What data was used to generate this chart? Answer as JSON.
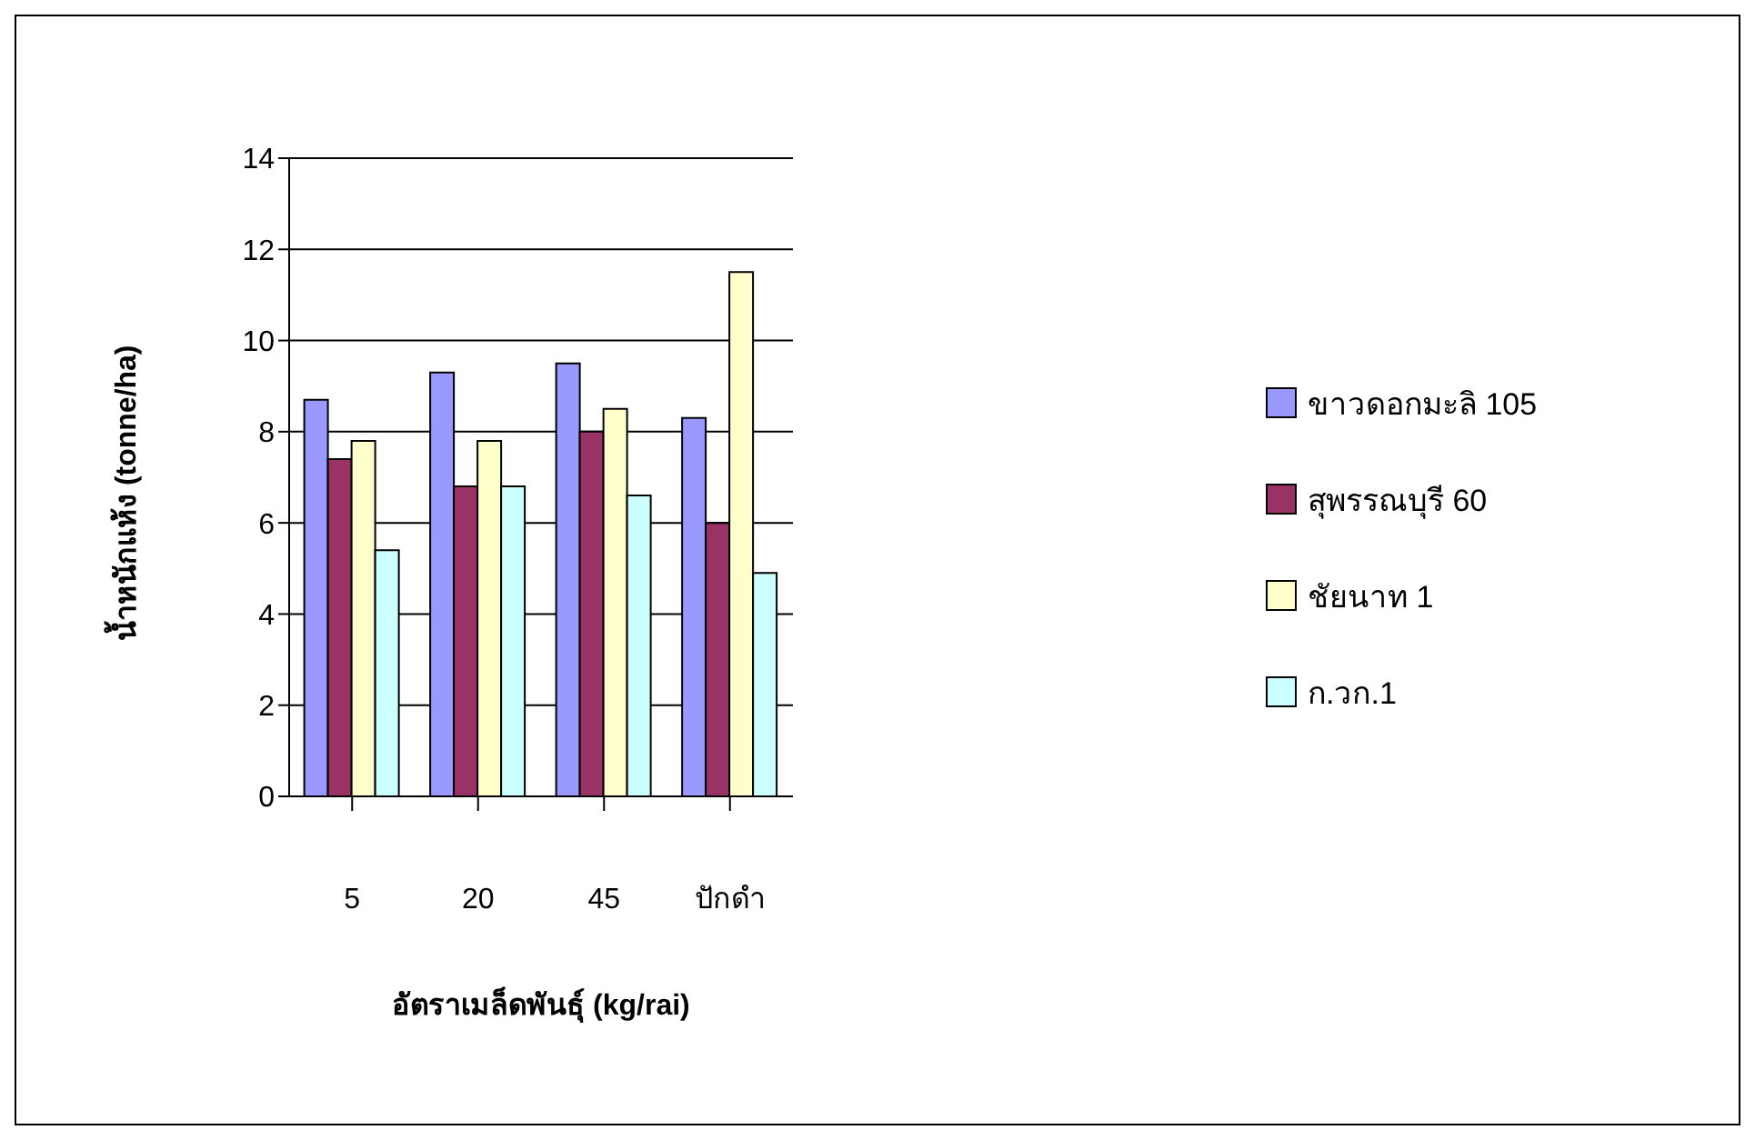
{
  "chart_data": {
    "type": "bar",
    "xlabel": "อัตราเมล็ดพันธุ์ (kg/rai)",
    "ylabel": "น้ำหนักแห้ง (tonne/ha)",
    "categories": [
      "5",
      "20",
      "45",
      "ปักดำ"
    ],
    "series": [
      {
        "name": "ขาวดอกมะลิ 105",
        "color": "#9999ff",
        "values": [
          8.7,
          9.3,
          9.5,
          8.3
        ]
      },
      {
        "name": "สุพรรณบุรี 60",
        "color": "#993366",
        "values": [
          7.4,
          6.8,
          8.0,
          6.0
        ]
      },
      {
        "name": "ชัยนาท 1",
        "color": "#ffffcc",
        "values": [
          7.8,
          7.8,
          8.5,
          11.5
        ]
      },
      {
        "name": "ก.วก.1",
        "color": "#ccffff",
        "values": [
          5.4,
          6.8,
          6.6,
          4.9
        ]
      }
    ],
    "ylim": [
      0,
      14
    ],
    "yticks": [
      0,
      2,
      4,
      6,
      8,
      10,
      12,
      14
    ],
    "grid": "y",
    "legend": "right"
  }
}
